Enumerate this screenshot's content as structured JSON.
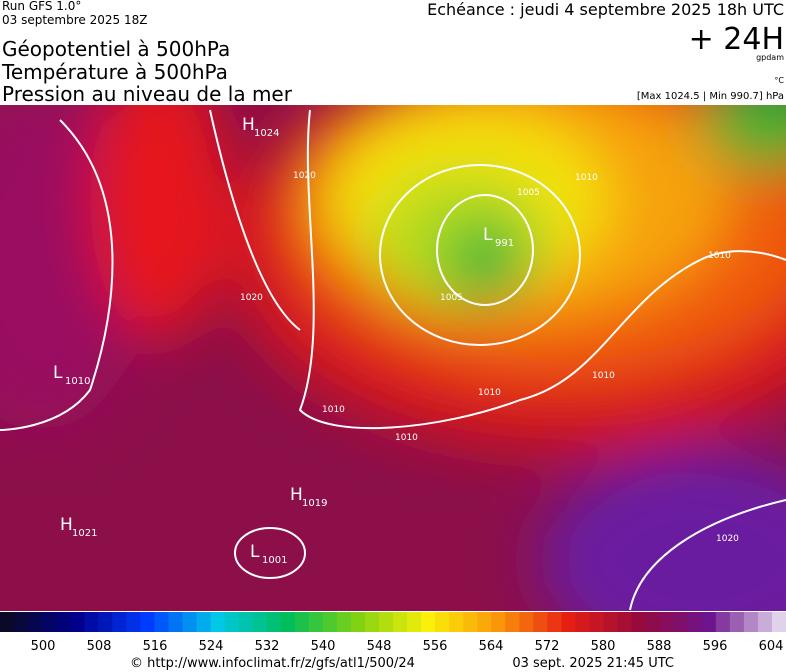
{
  "header": {
    "run": "Run GFS 1.0°",
    "run_date": "03 septembre 2025 18Z",
    "titles": [
      "Géopotentiel à 500hPa",
      "Température à 500hPa",
      "Pression au niveau de la mer"
    ],
    "echeance": "Echéance : jeudi 4 septembre 2025 18h UTC",
    "lead": "+ 24H",
    "unit_geo": "gpdam",
    "unit_temp": "°C",
    "pressure_range": "[Max 1024.5 | Min 990.7] hPa"
  },
  "map": {
    "centers": [
      {
        "letter": "H",
        "value": "1024"
      },
      {
        "letter": "L",
        "value": "991"
      },
      {
        "letter": "L",
        "value": "1010"
      },
      {
        "letter": "H",
        "value": "1019"
      },
      {
        "letter": "H",
        "value": "1021"
      },
      {
        "letter": "L",
        "value": "1001"
      }
    ],
    "isobar_labels": [
      "1020",
      "1010",
      "1005",
      "1005",
      "1020",
      "1010",
      "1010",
      "1010",
      "1010",
      "1010",
      "1020"
    ]
  },
  "colorbar": {
    "ticks": [
      500,
      508,
      516,
      524,
      532,
      540,
      548,
      556,
      564,
      572,
      580,
      588,
      596,
      604
    ]
  },
  "footer": {
    "url": "© http://www.infoclimat.fr/z/gfs/atl1/500/24",
    "time": "03 sept. 2025 21:45 UTC"
  }
}
